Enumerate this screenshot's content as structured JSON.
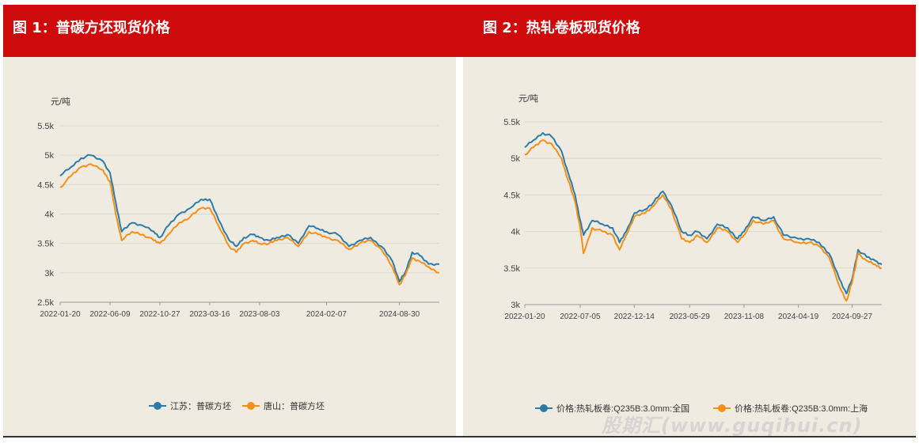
{
  "header": {
    "accent_color": "#cf0a0a"
  },
  "watermark": {
    "text": "股期汇(www.guqihui.cn)"
  },
  "chart_data": [
    {
      "type": "line",
      "title": "图 1：普碳方坯现货价格",
      "ylabel": "元/吨",
      "ylim": [
        2500,
        5500
      ],
      "yticks": [
        "5.5k",
        "5k",
        "4.5k",
        "4k",
        "3.5k",
        "3k",
        "2.5k"
      ],
      "xticks": [
        "2022-01-20",
        "2022-06-09",
        "2022-10-27",
        "2023-03-16",
        "2023-08-03",
        "2024-02-07",
        "2024-08-30"
      ],
      "grid": "horizontal",
      "legend_position": "bottom",
      "series": [
        {
          "name": "江苏：普碳方坯",
          "color": "#2b7ba8",
          "x": [
            "2022-01-20",
            "2022-02-20",
            "2022-03-20",
            "2022-04-15",
            "2022-05-20",
            "2022-06-09",
            "2022-06-25",
            "2022-07-12",
            "2022-08-10",
            "2022-09-10",
            "2022-10-10",
            "2022-10-27",
            "2022-11-20",
            "2022-12-20",
            "2023-01-20",
            "2023-02-20",
            "2023-03-16",
            "2023-04-10",
            "2023-05-10",
            "2023-05-30",
            "2023-06-20",
            "2023-07-15",
            "2023-08-03",
            "2023-08-30",
            "2023-09-20",
            "2023-10-20",
            "2023-11-20",
            "2023-12-20",
            "2024-01-15",
            "2024-02-07",
            "2024-03-10",
            "2024-04-10",
            "2024-05-10",
            "2024-06-10",
            "2024-07-10",
            "2024-08-10",
            "2024-08-30",
            "2024-09-15",
            "2024-10-05",
            "2024-10-25",
            "2024-11-20",
            "2024-12-20"
          ],
          "y": [
            4650,
            4800,
            4950,
            5000,
            4900,
            4700,
            4200,
            3700,
            3850,
            3800,
            3700,
            3600,
            3800,
            4000,
            4100,
            4250,
            4250,
            3900,
            3550,
            3450,
            3600,
            3650,
            3600,
            3550,
            3600,
            3650,
            3500,
            3800,
            3750,
            3700,
            3650,
            3450,
            3550,
            3600,
            3450,
            3200,
            2850,
            3000,
            3350,
            3300,
            3150,
            3150
          ]
        },
        {
          "name": "唐山：普碳方坯",
          "color": "#f39019",
          "x": [
            "2022-01-20",
            "2022-02-20",
            "2022-03-20",
            "2022-04-15",
            "2022-05-20",
            "2022-06-09",
            "2022-06-25",
            "2022-07-12",
            "2022-08-10",
            "2022-09-10",
            "2022-10-10",
            "2022-10-27",
            "2022-11-20",
            "2022-12-20",
            "2023-01-20",
            "2023-02-20",
            "2023-03-16",
            "2023-04-10",
            "2023-05-10",
            "2023-05-30",
            "2023-06-20",
            "2023-07-15",
            "2023-08-03",
            "2023-08-30",
            "2023-09-20",
            "2023-10-20",
            "2023-11-20",
            "2023-12-20",
            "2024-01-15",
            "2024-02-07",
            "2024-03-10",
            "2024-04-10",
            "2024-05-10",
            "2024-06-10",
            "2024-07-10",
            "2024-08-10",
            "2024-08-30",
            "2024-09-15",
            "2024-10-05",
            "2024-10-25",
            "2024-11-20",
            "2024-12-20"
          ],
          "y": [
            4450,
            4650,
            4800,
            4850,
            4750,
            4550,
            4000,
            3550,
            3700,
            3650,
            3550,
            3500,
            3650,
            3850,
            3950,
            4100,
            4100,
            3800,
            3450,
            3350,
            3500,
            3550,
            3500,
            3500,
            3550,
            3600,
            3450,
            3700,
            3650,
            3600,
            3550,
            3400,
            3500,
            3550,
            3400,
            3100,
            2800,
            2950,
            3250,
            3200,
            3100,
            3000
          ]
        }
      ]
    },
    {
      "type": "line",
      "title": "图 2：热轧卷板现货价格",
      "ylabel": "元/吨",
      "ylim": [
        3000,
        5500
      ],
      "yticks": [
        "5.5k",
        "5k",
        "4.5k",
        "4k",
        "3.5k",
        "3k"
      ],
      "xticks": [
        "2022-01-20",
        "2022-07-05",
        "2022-12-14",
        "2023-05-29",
        "2023-11-08",
        "2024-04-19",
        "2024-09-27"
      ],
      "grid": "horizontal",
      "legend_position": "bottom",
      "series": [
        {
          "name": "价格:热轧板卷:Q235B:3.0mm:全国",
          "color": "#2b7ba8",
          "x": [
            "2022-01-20",
            "2022-02-15",
            "2022-03-15",
            "2022-04-10",
            "2022-05-10",
            "2022-05-30",
            "2022-06-20",
            "2022-07-05",
            "2022-07-15",
            "2022-08-10",
            "2022-09-10",
            "2022-10-10",
            "2022-10-31",
            "2022-11-20",
            "2022-12-14",
            "2023-01-15",
            "2023-02-10",
            "2023-03-10",
            "2023-04-05",
            "2023-05-05",
            "2023-05-29",
            "2023-06-20",
            "2023-07-20",
            "2023-08-20",
            "2023-09-20",
            "2023-10-20",
            "2023-11-08",
            "2023-12-05",
            "2024-01-05",
            "2024-02-05",
            "2024-03-05",
            "2024-04-19",
            "2024-05-20",
            "2024-06-20",
            "2024-07-20",
            "2024-08-20",
            "2024-09-10",
            "2024-09-27",
            "2024-10-15",
            "2024-11-10",
            "2024-12-05",
            "2024-12-25"
          ],
          "y": [
            5150,
            5250,
            5350,
            5300,
            5100,
            4800,
            4500,
            4150,
            3950,
            4150,
            4100,
            4050,
            3850,
            4000,
            4250,
            4300,
            4400,
            4550,
            4350,
            4000,
            3950,
            4000,
            3900,
            4100,
            4050,
            3900,
            4000,
            4200,
            4150,
            4200,
            3950,
            3900,
            3900,
            3850,
            3700,
            3350,
            3150,
            3350,
            3750,
            3650,
            3600,
            3550
          ]
        },
        {
          "name": "价格:热轧板卷:Q235B:3.0mm:上海",
          "color": "#f39019",
          "x": [
            "2022-01-20",
            "2022-02-15",
            "2022-03-15",
            "2022-04-10",
            "2022-05-10",
            "2022-05-30",
            "2022-06-20",
            "2022-07-05",
            "2022-07-15",
            "2022-08-10",
            "2022-09-10",
            "2022-10-10",
            "2022-10-31",
            "2022-11-20",
            "2022-12-14",
            "2023-01-15",
            "2023-02-10",
            "2023-03-10",
            "2023-04-05",
            "2023-05-05",
            "2023-05-29",
            "2023-06-20",
            "2023-07-20",
            "2023-08-20",
            "2023-09-20",
            "2023-10-20",
            "2023-11-08",
            "2023-12-05",
            "2024-01-05",
            "2024-02-05",
            "2024-03-05",
            "2024-04-19",
            "2024-05-20",
            "2024-06-20",
            "2024-07-20",
            "2024-08-20",
            "2024-09-10",
            "2024-09-27",
            "2024-10-15",
            "2024-11-10",
            "2024-12-05",
            "2024-12-25"
          ],
          "y": [
            5050,
            5150,
            5250,
            5200,
            5000,
            4700,
            4400,
            4050,
            3700,
            4050,
            4000,
            3950,
            3750,
            3950,
            4200,
            4250,
            4350,
            4500,
            4300,
            3900,
            3850,
            3950,
            3850,
            4050,
            4000,
            3850,
            3950,
            4150,
            4100,
            4150,
            3900,
            3850,
            3850,
            3800,
            3650,
            3250,
            3050,
            3300,
            3700,
            3600,
            3550,
            3500
          ]
        }
      ]
    }
  ]
}
